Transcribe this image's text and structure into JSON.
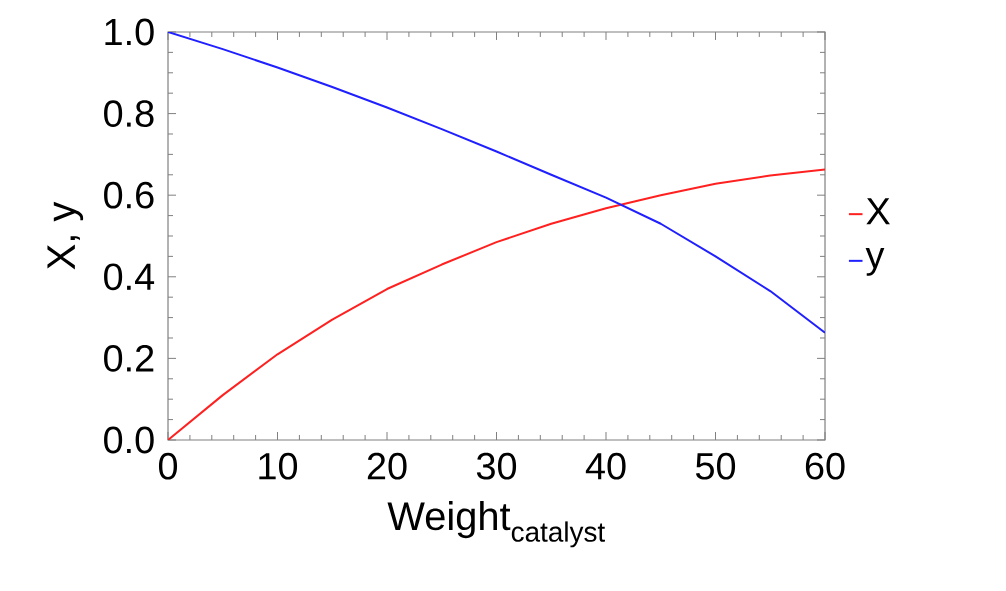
{
  "chart_data": {
    "type": "line",
    "xlabel": "Weight$_{catalyst}$",
    "ylabel": "X, y",
    "x": [
      0,
      5,
      10,
      15,
      20,
      25,
      30,
      35,
      40,
      45,
      50,
      55,
      60
    ],
    "series": [
      {
        "name": "X",
        "color": "#ff2020",
        "values": [
          0,
          0.11,
          0.21,
          0.295,
          0.37,
          0.43,
          0.485,
          0.53,
          0.568,
          0.6,
          0.628,
          0.648,
          0.663
        ]
      },
      {
        "name": "y",
        "color": "#2020ff",
        "values": [
          1.0,
          0.958,
          0.913,
          0.865,
          0.815,
          0.762,
          0.707,
          0.65,
          0.594,
          0.53,
          0.45,
          0.365,
          0.263
        ]
      }
    ],
    "xlim": [
      0,
      60
    ],
    "ylim": [
      0,
      1
    ],
    "xticks": [
      0,
      10,
      20,
      30,
      40,
      50,
      60
    ],
    "yticks": [
      {
        "value": 0,
        "label": "0.0"
      },
      {
        "value": 0.2,
        "label": "0.2"
      },
      {
        "value": 0.4,
        "label": "0.4"
      },
      {
        "value": 0.6,
        "label": "0.6"
      },
      {
        "value": 0.8,
        "label": "0.8"
      },
      {
        "value": 1,
        "label": "1.0"
      }
    ],
    "grid": false,
    "legend": "right",
    "marker": "none",
    "line_style": "solid"
  }
}
